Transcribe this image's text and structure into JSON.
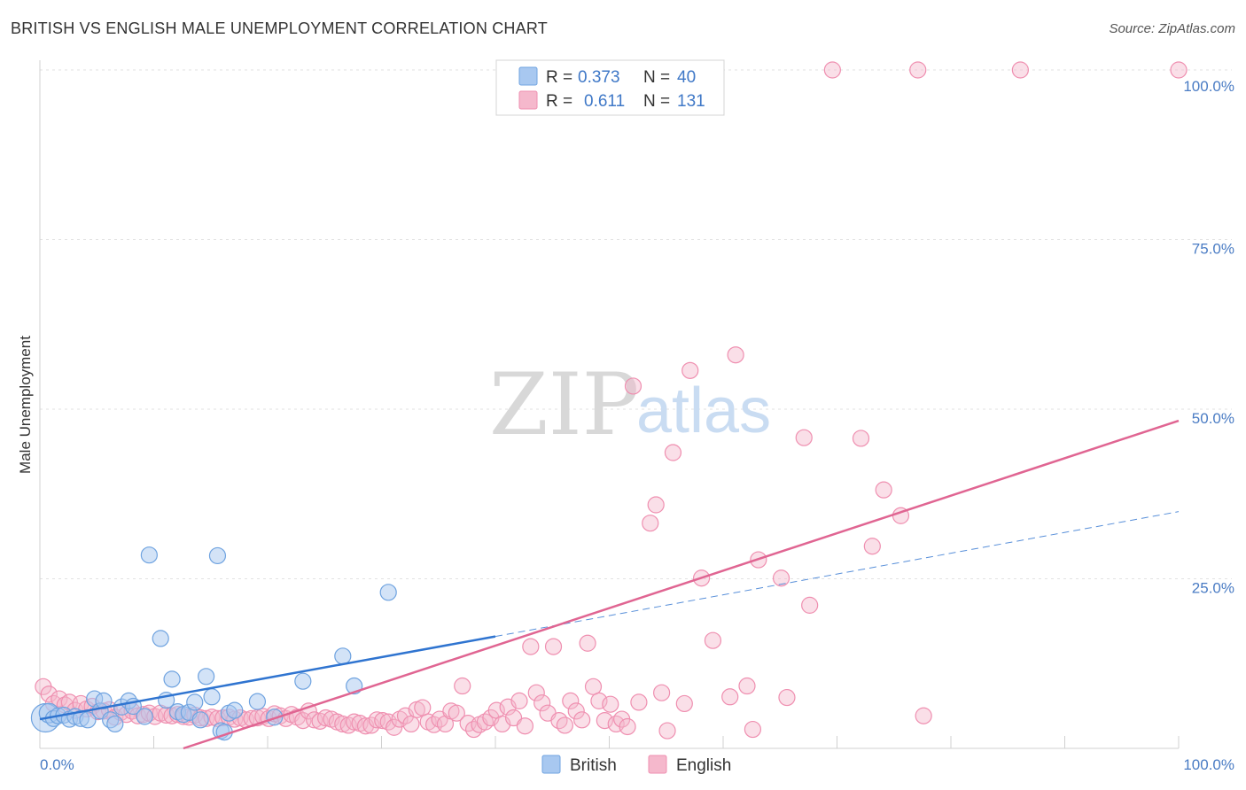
{
  "header": {
    "title": "BRITISH VS ENGLISH MALE UNEMPLOYMENT CORRELATION CHART",
    "source": "Source: ZipAtlas.com"
  },
  "watermark": {
    "zip": "ZIP",
    "atlas": "atlas"
  },
  "legend": {
    "rows": [
      {
        "r_label": "R =",
        "r_value": "0.373",
        "n_label": "N =",
        "n_value": "40",
        "color": "#a8c8f0"
      },
      {
        "r_label": "R =",
        "r_value": "0.611",
        "n_label": "N =",
        "n_value": "131",
        "color": "#f5b8cc"
      }
    ]
  },
  "bottom_legend": [
    {
      "label": "British",
      "color": "#a8c8f0"
    },
    {
      "label": "English",
      "color": "#f5b8cc"
    }
  ],
  "chart_data": {
    "type": "scatter",
    "title": "BRITISH VS ENGLISH MALE UNEMPLOYMENT CORRELATION CHART",
    "xlabel": "",
    "ylabel": "Male Unemployment",
    "xlim": [
      0,
      100
    ],
    "ylim": [
      0,
      100
    ],
    "x_tick_labels": [
      "0.0%",
      "100.0%"
    ],
    "y_ticks": [
      25,
      50,
      75,
      100
    ],
    "y_tick_labels": [
      "25.0%",
      "50.0%",
      "75.0%",
      "100.0%"
    ],
    "grid": true,
    "legend_position": "top-center",
    "colors": {
      "British": "#6fa3e0",
      "English": "#ef8fb0",
      "british_line": "#2f74d0",
      "english_line": "#e06592"
    },
    "series": [
      {
        "name": "British",
        "r": 0.373,
        "n": 40,
        "trend": {
          "x0": 0,
          "y0": 4.3,
          "x1": 40,
          "y1": 16.5,
          "dash_x1": 100,
          "dash_y1": 34.9
        },
        "points": [
          [
            0.5,
            4.5,
            16
          ],
          [
            0.8,
            5.2,
            11
          ],
          [
            1.2,
            4.4,
            9
          ],
          [
            1.6,
            4.8,
            9
          ],
          [
            2.1,
            4.9,
            9
          ],
          [
            2.6,
            4.3,
            9
          ],
          [
            3.1,
            4.7,
            9
          ],
          [
            3.6,
            4.4,
            9
          ],
          [
            4.2,
            4.2,
            9
          ],
          [
            4.8,
            7.3,
            9
          ],
          [
            5.3,
            5.5,
            9
          ],
          [
            5.6,
            7.0,
            9
          ],
          [
            6.2,
            4.2,
            9
          ],
          [
            6.6,
            3.6,
            9
          ],
          [
            7.2,
            6.1,
            9
          ],
          [
            7.8,
            7.0,
            9
          ],
          [
            8.2,
            6.2,
            9
          ],
          [
            9.2,
            4.7,
            9
          ],
          [
            9.6,
            28.5,
            9
          ],
          [
            10.6,
            16.2,
            9
          ],
          [
            11.1,
            7.1,
            9
          ],
          [
            11.6,
            10.2,
            9
          ],
          [
            12.1,
            5.4,
            9
          ],
          [
            12.6,
            5.0,
            9
          ],
          [
            13.1,
            5.3,
            9
          ],
          [
            13.6,
            6.8,
            9
          ],
          [
            14.1,
            4.2,
            9
          ],
          [
            14.6,
            10.6,
            9
          ],
          [
            15.1,
            7.6,
            9
          ],
          [
            15.6,
            28.4,
            9
          ],
          [
            15.9,
            2.6,
            9
          ],
          [
            16.2,
            2.4,
            9
          ],
          [
            16.6,
            5.2,
            9
          ],
          [
            17.1,
            5.6,
            9
          ],
          [
            19.1,
            6.9,
            9
          ],
          [
            20.6,
            4.6,
            9
          ],
          [
            23.1,
            9.9,
            9
          ],
          [
            27.6,
            9.2,
            9
          ],
          [
            30.6,
            23.0,
            9
          ],
          [
            26.6,
            13.6,
            9
          ]
        ]
      },
      {
        "name": "English",
        "r": 0.611,
        "n": 131,
        "trend": {
          "x0": 12.6,
          "y0": 0,
          "x1": 100,
          "y1": 48.3
        },
        "points": [
          [
            0.3,
            9.1,
            9
          ],
          [
            0.8,
            8.0,
            9
          ],
          [
            1.2,
            6.6,
            9
          ],
          [
            1.7,
            7.3,
            9
          ],
          [
            2.2,
            6.4,
            9
          ],
          [
            2.6,
            6.8,
            9
          ],
          [
            3.1,
            5.6,
            9
          ],
          [
            3.6,
            6.6,
            9
          ],
          [
            4.1,
            5.8,
            9
          ],
          [
            4.6,
            6.2,
            9
          ],
          [
            5.1,
            5.4,
            9
          ],
          [
            5.6,
            5.5,
            9
          ],
          [
            6.1,
            5.7,
            9
          ],
          [
            6.6,
            4.6,
            9
          ],
          [
            7.1,
            5.3,
            9
          ],
          [
            7.6,
            5.0,
            9
          ],
          [
            8.1,
            5.5,
            9
          ],
          [
            8.6,
            4.8,
            9
          ],
          [
            9.1,
            5.0,
            9
          ],
          [
            9.6,
            5.2,
            9
          ],
          [
            10.1,
            4.7,
            9
          ],
          [
            10.6,
            5.2,
            9
          ],
          [
            11.1,
            4.9,
            9
          ],
          [
            11.6,
            4.8,
            9
          ],
          [
            12.1,
            5.0,
            9
          ],
          [
            12.6,
            4.7,
            9
          ],
          [
            13.1,
            4.6,
            9
          ],
          [
            13.6,
            4.9,
            9
          ],
          [
            14.1,
            4.5,
            9
          ],
          [
            14.6,
            4.4,
            9
          ],
          [
            15.1,
            4.6,
            9
          ],
          [
            15.6,
            4.4,
            9
          ],
          [
            16.1,
            4.5,
            9
          ],
          [
            16.6,
            4.6,
            9
          ],
          [
            17.1,
            4.3,
            9
          ],
          [
            17.6,
            4.5,
            9
          ],
          [
            18.1,
            4.2,
            9
          ],
          [
            18.6,
            4.4,
            9
          ],
          [
            19.1,
            4.5,
            9
          ],
          [
            19.6,
            4.7,
            9
          ],
          [
            20.1,
            4.4,
            9
          ],
          [
            20.6,
            5.1,
            9
          ],
          [
            21.1,
            4.8,
            9
          ],
          [
            21.6,
            4.4,
            9
          ],
          [
            22.1,
            5.0,
            9
          ],
          [
            22.6,
            4.6,
            9
          ],
          [
            23.1,
            4.1,
            9
          ],
          [
            23.6,
            5.5,
            9
          ],
          [
            24.1,
            4.2,
            9
          ],
          [
            24.6,
            4.0,
            9
          ],
          [
            25.1,
            4.5,
            9
          ],
          [
            25.6,
            4.3,
            9
          ],
          [
            26.1,
            3.9,
            9
          ],
          [
            26.6,
            3.6,
            9
          ],
          [
            27.1,
            3.4,
            9
          ],
          [
            27.6,
            3.9,
            9
          ],
          [
            28.1,
            3.7,
            9
          ],
          [
            28.6,
            3.3,
            9
          ],
          [
            29.1,
            3.4,
            9
          ],
          [
            29.6,
            4.2,
            9
          ],
          [
            30.1,
            4.1,
            9
          ],
          [
            30.6,
            3.9,
            9
          ],
          [
            31.1,
            3.1,
            9
          ],
          [
            31.6,
            4.3,
            9
          ],
          [
            32.1,
            4.8,
            9
          ],
          [
            32.6,
            3.6,
            9
          ],
          [
            33.1,
            5.7,
            9
          ],
          [
            33.6,
            6.0,
            9
          ],
          [
            34.1,
            3.9,
            9
          ],
          [
            34.6,
            3.5,
            9
          ],
          [
            35.1,
            4.3,
            9
          ],
          [
            35.6,
            3.6,
            9
          ],
          [
            36.1,
            5.5,
            9
          ],
          [
            36.6,
            5.2,
            9
          ],
          [
            37.1,
            9.2,
            9
          ],
          [
            37.6,
            3.7,
            9
          ],
          [
            38.1,
            2.8,
            9
          ],
          [
            38.6,
            3.5,
            9
          ],
          [
            39.1,
            3.9,
            9
          ],
          [
            39.6,
            4.5,
            9
          ],
          [
            40.1,
            5.6,
            9
          ],
          [
            40.6,
            3.6,
            9
          ],
          [
            41.1,
            6.1,
            9
          ],
          [
            41.6,
            4.5,
            9
          ],
          [
            42.1,
            7.0,
            9
          ],
          [
            42.6,
            3.3,
            9
          ],
          [
            43.1,
            15.0,
            9
          ],
          [
            43.6,
            8.2,
            9
          ],
          [
            44.1,
            6.7,
            9
          ],
          [
            44.6,
            5.2,
            9
          ],
          [
            45.1,
            15.0,
            9
          ],
          [
            45.6,
            4.1,
            9
          ],
          [
            46.1,
            3.4,
            9
          ],
          [
            46.6,
            7.0,
            9
          ],
          [
            47.1,
            5.5,
            9
          ],
          [
            47.6,
            4.2,
            9
          ],
          [
            48.1,
            15.5,
            9
          ],
          [
            48.6,
            9.1,
            9
          ],
          [
            49.1,
            7.0,
            9
          ],
          [
            49.6,
            4.1,
            9
          ],
          [
            50.1,
            6.5,
            9
          ],
          [
            50.6,
            3.6,
            9
          ],
          [
            51.1,
            4.3,
            9
          ],
          [
            51.6,
            3.2,
            9
          ],
          [
            52.1,
            53.4,
            9
          ],
          [
            52.6,
            6.8,
            9
          ],
          [
            53.6,
            33.2,
            9
          ],
          [
            54.1,
            35.9,
            9
          ],
          [
            54.6,
            8.2,
            9
          ],
          [
            55.1,
            2.6,
            9
          ],
          [
            55.6,
            43.6,
            9
          ],
          [
            56.6,
            6.6,
            9
          ],
          [
            57.1,
            55.7,
            9
          ],
          [
            58.1,
            25.1,
            9
          ],
          [
            59.1,
            15.9,
            9
          ],
          [
            60.6,
            7.6,
            9
          ],
          [
            61.1,
            58.0,
            9
          ],
          [
            62.1,
            9.2,
            9
          ],
          [
            62.6,
            2.8,
            9
          ],
          [
            63.1,
            27.8,
            9
          ],
          [
            65.1,
            25.1,
            9
          ],
          [
            65.6,
            7.5,
            9
          ],
          [
            67.6,
            21.1,
            9
          ],
          [
            67.1,
            45.8,
            9
          ],
          [
            69.6,
            100,
            9
          ],
          [
            72.1,
            45.7,
            9
          ],
          [
            73.1,
            29.8,
            9
          ],
          [
            74.1,
            38.1,
            9
          ],
          [
            75.6,
            34.3,
            9
          ],
          [
            77.1,
            100,
            9
          ],
          [
            77.6,
            4.8,
            9
          ],
          [
            86.1,
            100,
            9
          ],
          [
            100,
            100,
            9
          ]
        ]
      }
    ]
  }
}
